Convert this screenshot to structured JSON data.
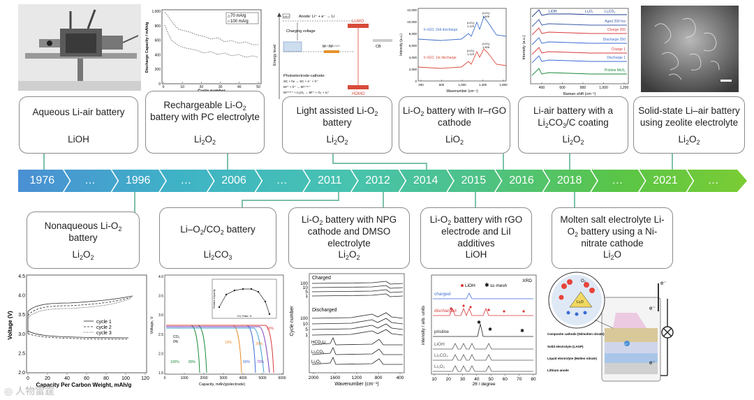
{
  "timeline": {
    "years": [
      "1976",
      "…",
      "1996",
      "…",
      "2006",
      "…",
      "2011",
      "2012",
      "2014",
      "2015",
      "2016",
      "2018",
      "…",
      "2021",
      "…"
    ],
    "gradient": [
      "#4a8fd4",
      "#3fb3c6",
      "#47c3b0",
      "#4dc28a",
      "#59c548",
      "#7bcc34"
    ]
  },
  "top_cards": [
    {
      "title": "Aqueous Li-air battery",
      "product": "LiOH"
    },
    {
      "title_parts": [
        "Rechargeable Li-O",
        "2",
        " battery with PC electrolyte"
      ],
      "product_parts": [
        "Li",
        "2",
        "O",
        "2"
      ]
    },
    {
      "title_parts": [
        "Light assisted Li-O",
        "2",
        " battery"
      ],
      "product_parts": [
        "Li",
        "2",
        "O",
        "2"
      ]
    },
    {
      "title_parts": [
        "Li-O",
        "2",
        " battery with Ir–rGO cathode"
      ],
      "product_parts": [
        "LiO",
        "2"
      ]
    },
    {
      "title_parts": [
        "Li-air battery with a Li",
        "2",
        "CO",
        "3",
        "/C coating"
      ],
      "product_parts": [
        "Li",
        "2",
        "O",
        "2"
      ]
    },
    {
      "title": "Solid-state Li–air battery using zeolite electrolyte",
      "product_parts": [
        "Li",
        "2",
        "O",
        "2"
      ]
    }
  ],
  "bottom_cards": [
    {
      "title_parts": [
        "Nonaqueous Li-O",
        "2",
        " battery"
      ],
      "product_parts": [
        "Li",
        "2",
        "O",
        "2"
      ]
    },
    {
      "title_parts": [
        "Li–O",
        "2",
        "/CO",
        "2",
        " battery"
      ],
      "product_parts": [
        "Li",
        "2",
        "CO",
        "3"
      ]
    },
    {
      "title_parts": [
        "Li-O",
        "2",
        " battery with NPG cathode and DMSO electrolyte"
      ],
      "product_parts": [
        "Li",
        "2",
        "O",
        "2"
      ]
    },
    {
      "title_parts": [
        "Li-O",
        "2",
        " battery with rGO electrode and LiI additives"
      ],
      "product": "LiOH"
    },
    {
      "title_parts": [
        "Molten salt electrolyte Li-O",
        "2",
        " battery using a Ni-nitrate cathode"
      ],
      "product_parts": [
        "Li",
        "2",
        "O"
      ]
    }
  ],
  "figures": {
    "discharge_capacity": {
      "ylabel": "Discharge Capacity / mAh/g",
      "xlabel": "Cycle number",
      "legend": [
        "70 mA/g",
        "100 mA/g"
      ],
      "yticks": [
        "1,000",
        "800",
        "600",
        "400",
        "200",
        "0"
      ],
      "xticks": [
        "0",
        "10",
        "20",
        "30",
        "40",
        "50"
      ]
    },
    "energy_diagram": {
      "anode": "Anode: Li⁺ + e⁻ → Li",
      "charging": "Charging voltage",
      "lumo": "LUMO",
      "homo": "HOMO",
      "cb": "CB",
      "photo": "Photoelectrode-cathode:",
      "eq1": "SC + hν → SC + e⁻ + h⁺",
      "eq2": "Mⁿ⁺ + h⁺ → M⁽ⁿ⁺¹⁾⁺",
      "eq3": "M⁽ⁿ⁺¹⁾⁺ + Li₂O₂ → Mⁿ⁺ + O₂ + Li⁺",
      "energy": "Energy level"
    },
    "raman_ir": {
      "ylabel": "Intensity (a.u.)",
      "xlabel": "Wavenumber (cm⁻¹)",
      "top_label": "Ir-rGO, 2nd discharge",
      "bottom_label": "Ir-rGO, 1st discharge",
      "yticks": [
        "12,000",
        "10,000",
        "8,000",
        "6,000",
        "4,000",
        "2,000",
        "0"
      ],
      "xticks": [
        "200",
        "600",
        "1,000",
        "1,400",
        "1,800"
      ],
      "peaks_top": [
        "(LiO₂)",
        "1,123",
        "(LiO₂)",
        "1,505"
      ],
      "peaks_bottom": [
        "(LiO₂)",
        "1,123",
        "(LiO₂)",
        "1,505"
      ]
    },
    "raman_mos2": {
      "ylabel": "Intensity (a.u.)",
      "xlabel": "Raman shift (cm⁻¹)",
      "labels": [
        "LiOH",
        "Li₂O₂",
        "Li₂CO₃",
        "Aged 200 hrs",
        "Charge 250",
        "Discharge 250",
        "Charge 1",
        "Discharge 1",
        "Pristine MoS₂"
      ],
      "xticks": [
        "400",
        "600",
        "800",
        "1,000",
        "1,200"
      ]
    },
    "voltage_capacity": {
      "ylabel": "Voltage (V)",
      "xlabel": "Capacity Per Carbon Weight, mAh/g",
      "legend": [
        "cycle 1",
        "cycle 2",
        "cycle 3"
      ],
      "yticks": [
        "4.5",
        "4.0",
        "3.5",
        "3.0",
        "2.5",
        "2.0"
      ],
      "xticks": [
        "0",
        "20",
        "40",
        "60",
        "80",
        "100",
        "120"
      ]
    },
    "co2_discharge": {
      "ylabel": "Voltage, V",
      "xlabel": "Capacity, mAh/g(electrode)",
      "co2": "CO₂",
      "co2_0": "0%",
      "pct_labels": [
        "100%",
        "80%",
        "10%",
        "50%",
        "30%",
        "60%",
        "70%"
      ],
      "yticks": [
        "4.0",
        "3.5",
        "3.0",
        "2.5",
        "2.0",
        "1.5"
      ],
      "xticks": [
        "0",
        "1000",
        "2000",
        "3000",
        "4000",
        "5000",
        "6000"
      ],
      "inset_ylabel": "Relative Capacity",
      "inset_xlabel": "CO₂ Ratio, %"
    },
    "ir_spectra": {
      "ylabel": "Cycle number",
      "xlabel": "Wavenumber (cm⁻¹)",
      "charged": "Charged",
      "discharged": "Discharged",
      "charged_cycles": [
        "100",
        "10",
        "5",
        "1"
      ],
      "discharged_cycles": [
        "100",
        "10",
        "5",
        "1"
      ],
      "refs": [
        "HCO₂Li",
        "Li₂CO₃",
        "Li₂O₂"
      ],
      "xticks": [
        "2000",
        "1600",
        "1200",
        "800",
        "400"
      ]
    },
    "xrd": {
      "title": "XRD",
      "legend_lioh": "LiOH",
      "legend_ss": "ss mesh",
      "ylabel": "intensity / arb. units",
      "xlabel": "2θ / degree",
      "traces": [
        "charged",
        "discharged",
        "pristine",
        "LiOH",
        "Li₂CO₃",
        "Li₂O₂"
      ],
      "xticks": [
        "10",
        "20",
        "30",
        "40",
        "50",
        "60",
        "70",
        "80"
      ]
    },
    "molten_cell": {
      "electron": "e⁻",
      "o2": "O₂",
      "li2o": "Li₂O",
      "layers": [
        "Composite cathode (Ni/molten nitrate)",
        "Solid electrolyte (LAGP)",
        "Liquid electrolyte (Molten nitrate)",
        "Lithium anode"
      ],
      "li": "Li⁺"
    }
  },
  "watermark": "人物雷霆"
}
